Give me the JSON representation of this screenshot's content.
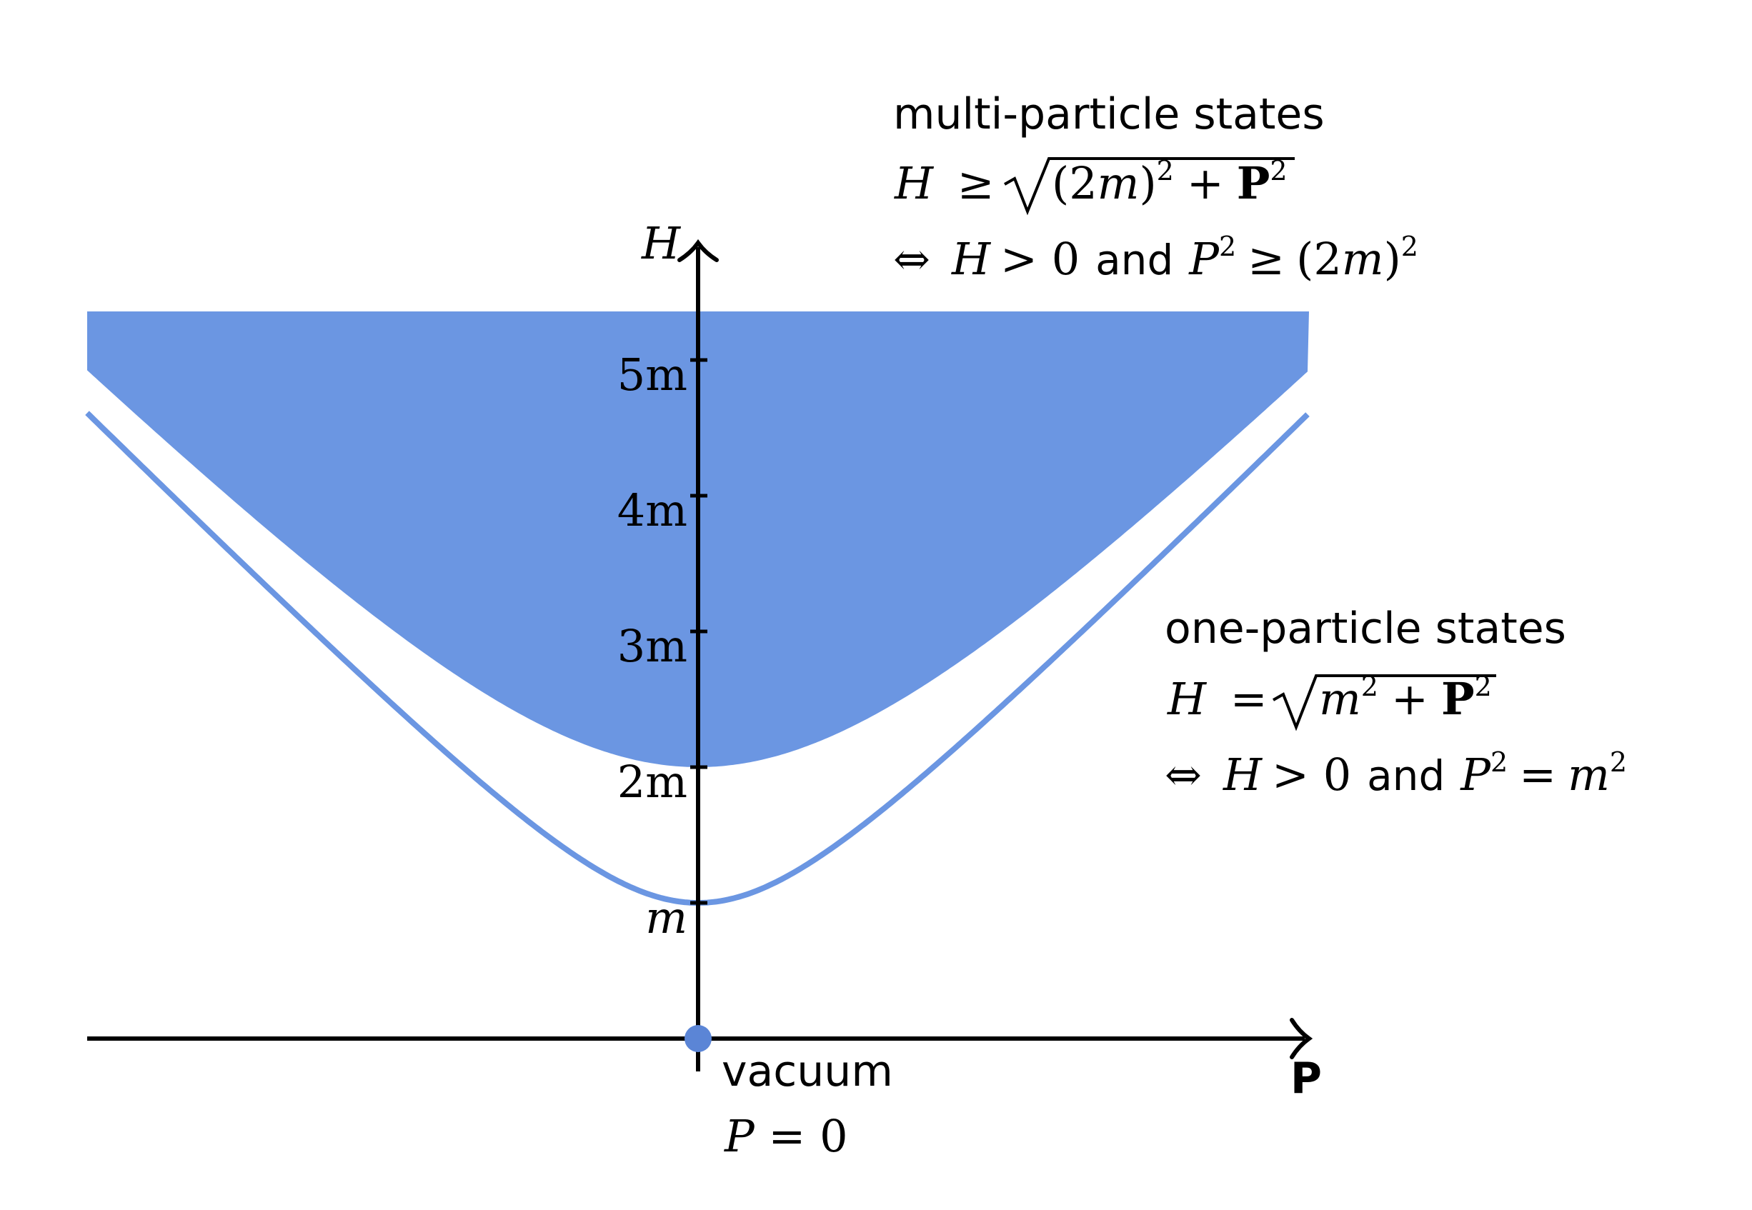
{
  "axes": {
    "vertical_label": "H",
    "horizontal_label": "P"
  },
  "ticks": [
    {
      "label": "m",
      "value": 1
    },
    {
      "label": "2m",
      "value": 2
    },
    {
      "label": "3m",
      "value": 3
    },
    {
      "label": "4m",
      "value": 4
    },
    {
      "label": "5m",
      "value": 5
    }
  ],
  "multi_particle": {
    "title": "multi-particle states",
    "line1": {
      "lhs": "H",
      "rel": "≥",
      "radicand_a": "(2",
      "radicand_m": "m",
      "radicand_b": ")",
      "radicand_exp1": "2",
      "plus": "+",
      "bold_p": "P",
      "radicand_exp2": "2"
    },
    "line2": {
      "iff": "⇔",
      "h": "H",
      "gt_zero": "> 0",
      "and": "and",
      "p": "P",
      "p_exp": "2",
      "rel": "≥",
      "rhs_a": "(2",
      "rhs_m": "m",
      "rhs_b": ")",
      "rhs_exp": "2"
    }
  },
  "one_particle": {
    "title": "one-particle states",
    "line1": {
      "lhs": "H",
      "rel": "=",
      "radicand_m": "m",
      "radicand_exp1": "2",
      "plus": "+",
      "bold_p": "P",
      "radicand_exp2": "2"
    },
    "line2": {
      "iff": "⇔",
      "h": "H",
      "gt_zero": "> 0",
      "and": "and",
      "p": "P",
      "p_exp": "2",
      "rel": "=",
      "rhs_m": "m",
      "rhs_exp": "2"
    }
  },
  "vacuum": {
    "title": "vacuum",
    "eq_p": "P",
    "eq_rest": " = 0"
  },
  "colors": {
    "region": "#6b96e2",
    "curve": "#6b96e2",
    "axis": "#000000",
    "vacuum_dot": "#5b85d6"
  }
}
